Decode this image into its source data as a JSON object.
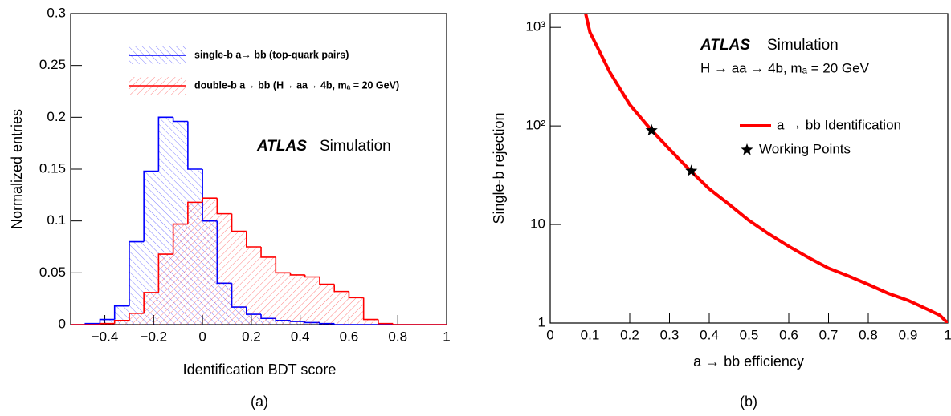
{
  "chart_data": [
    {
      "type": "histogram",
      "bins": [
        -0.54,
        -0.48,
        -0.42,
        -0.36,
        -0.3,
        -0.24,
        -0.18,
        -0.12,
        -0.06,
        0,
        0.06,
        0.12,
        0.18,
        0.24,
        0.3,
        0.36,
        0.42,
        0.48,
        0.54,
        0.6,
        0.66,
        0.72,
        0.78,
        0.84,
        0.9,
        0.96
      ],
      "series": [
        {
          "name": "single-b a→ bb (top-quark pairs)",
          "color": "#0000ff",
          "hatch": "back",
          "values": [
            0,
            0.001,
            0.005,
            0.018,
            0.08,
            0.148,
            0.2,
            0.196,
            0.15,
            0.1,
            0.04,
            0.017,
            0.01,
            0.006,
            0.004,
            0.003,
            0.002,
            0.001,
            0,
            0,
            0,
            0,
            0,
            0,
            0
          ]
        },
        {
          "name": "double-b a→ bb (H→ aa→ 4b, mₐ = 20 GeV)",
          "color": "#ff0000",
          "hatch": "forward",
          "values": [
            0,
            0,
            0.001,
            0.004,
            0.011,
            0.031,
            0.068,
            0.097,
            0.118,
            0.122,
            0.107,
            0.09,
            0.075,
            0.065,
            0.05,
            0.048,
            0.046,
            0.039,
            0.032,
            0.026,
            0.005,
            0.001,
            0,
            0,
            0
          ]
        }
      ],
      "xlim": [
        -0.54,
        1.0
      ],
      "ylim": [
        0,
        0.3
      ],
      "xticks": [
        {
          "value": -0.4,
          "label": "−0.4"
        },
        {
          "value": -0.2,
          "label": "−0.2"
        },
        0,
        0.2,
        0.4,
        0.6,
        0.8,
        1
      ],
      "yticks": [
        0,
        0.05,
        0.1,
        0.15,
        0.2,
        0.25,
        0.3
      ],
      "xlabel": "Identification BDT score",
      "ylabel": "Normalized entries",
      "atlas_label": "ATLAS",
      "atlas_sublabel": "Simulation",
      "caption": "(a)"
    },
    {
      "type": "line",
      "series": [
        {
          "name": "a → bb Identification",
          "color": "#ff0000",
          "x": [
            0.089,
            0.1,
            0.15,
            0.2,
            0.25,
            0.3,
            0.35,
            0.4,
            0.45,
            0.5,
            0.55,
            0.6,
            0.65,
            0.7,
            0.75,
            0.8,
            0.85,
            0.9,
            0.95,
            0.98,
            1.0
          ],
          "values": [
            1380,
            890,
            350,
            165,
            95,
            58,
            36,
            23,
            16,
            11,
            8,
            6,
            4.6,
            3.6,
            3.0,
            2.46,
            2.0,
            1.7,
            1.37,
            1.2,
            1
          ]
        },
        {
          "name": "Working Points",
          "color": "#000000",
          "marker": "star",
          "x": [
            0.255,
            0.355
          ],
          "values": [
            90,
            35
          ]
        }
      ],
      "xlim": [
        0,
        1
      ],
      "ylim": [
        1,
        1380
      ],
      "ylog": true,
      "xticks": [
        0,
        0.1,
        0.2,
        0.3,
        0.4,
        0.5,
        0.6,
        0.7,
        0.8,
        0.9,
        1
      ],
      "yticks": [
        1,
        10,
        {
          "value": 100,
          "label": "10²"
        },
        {
          "value": 1000,
          "label": "10³"
        }
      ],
      "xlabel": "a → bb efficiency",
      "ylabel": "Single-b rejection",
      "atlas_label": "ATLAS",
      "atlas_sublabel": "Simulation",
      "process_label": "H → aa → 4b, mₐ = 20 GeV",
      "caption": "(b)"
    }
  ]
}
